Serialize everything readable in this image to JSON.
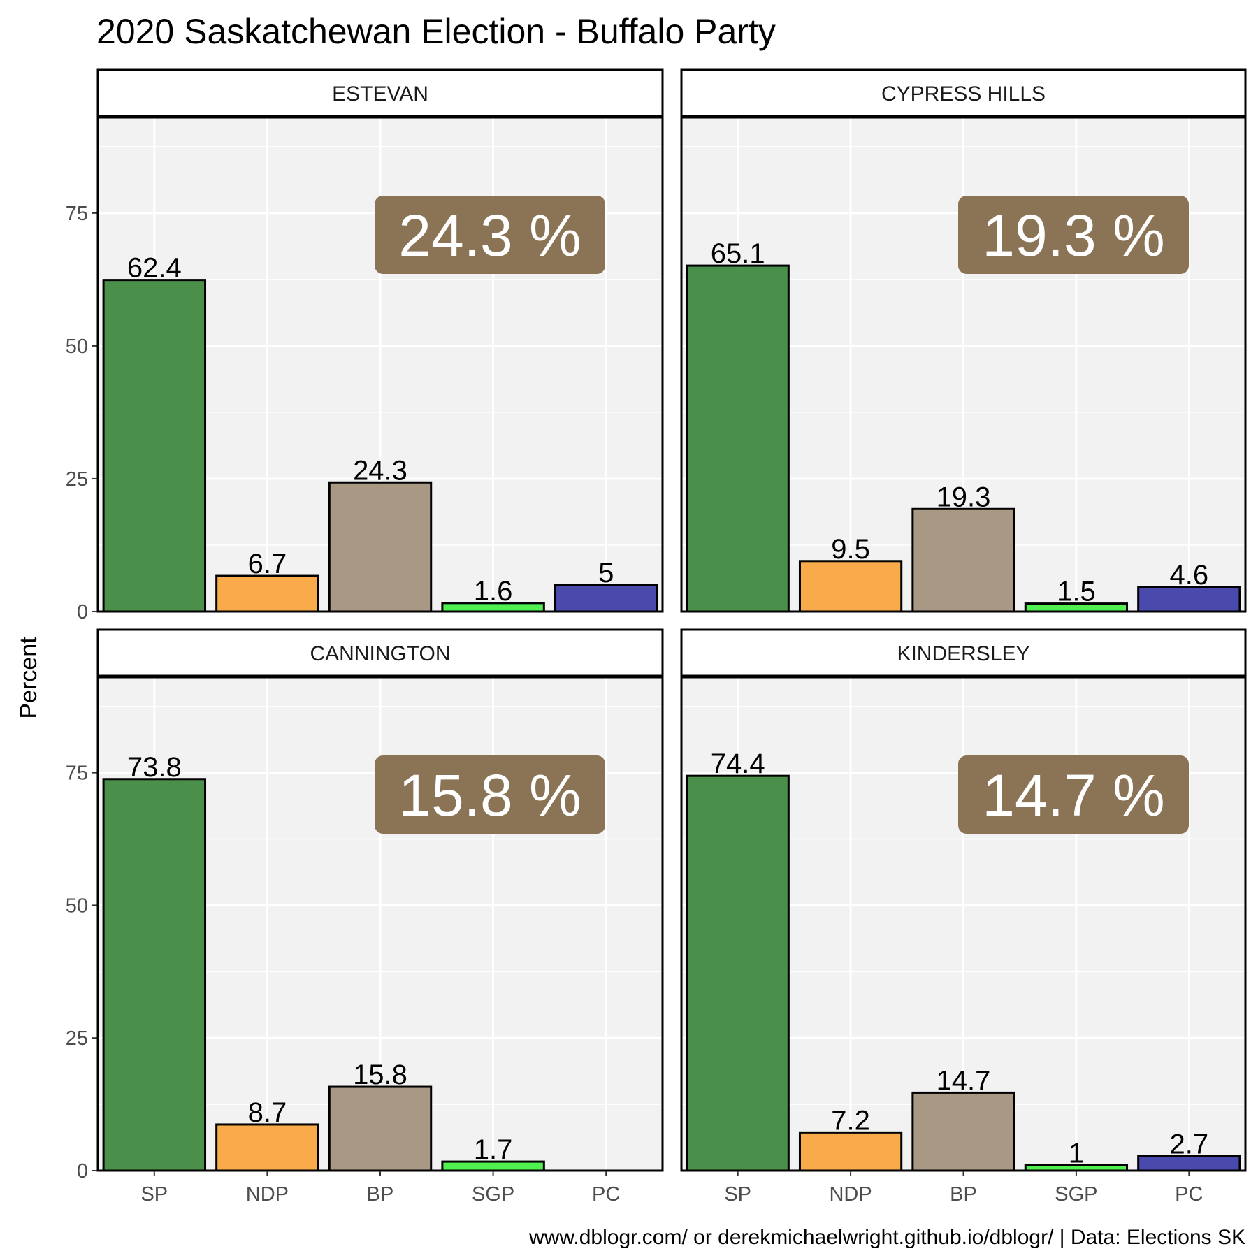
{
  "chart_data": {
    "type": "bar",
    "title": "2020 Saskatchewan Election - Buffalo Party",
    "ylabel": "Percent",
    "caption": "www.dblogr.com/ or derekmichaelwright.github.io/dblogr/ | Data: Elections SK",
    "categories": [
      "SP",
      "NDP",
      "BP",
      "SGP",
      "PC"
    ],
    "colors": {
      "SP": "#4a8f4a",
      "NDP": "#f9ab4b",
      "BP": "#a99884",
      "SGP": "#4ff04f",
      "PC": "#4a4aad"
    },
    "label_box_color": "#8b7455",
    "ylim": [
      0,
      93
    ],
    "yticks": [
      0,
      25,
      50,
      75
    ],
    "facets": [
      {
        "name": "ESTEVAN",
        "values": [
          62.4,
          6.7,
          24.3,
          1.6,
          5
        ],
        "value_labels": [
          "62.4",
          "6.7",
          "24.3",
          "1.6",
          "5"
        ],
        "highlight": "24.3 %"
      },
      {
        "name": "CYPRESS HILLS",
        "values": [
          65.1,
          9.5,
          19.3,
          1.5,
          4.6
        ],
        "value_labels": [
          "65.1",
          "9.5",
          "19.3",
          "1.5",
          "4.6"
        ],
        "highlight": "19.3 %"
      },
      {
        "name": "CANNINGTON",
        "values": [
          73.8,
          8.7,
          15.8,
          1.7,
          null
        ],
        "value_labels": [
          "73.8",
          "8.7",
          "15.8",
          "1.7",
          null
        ],
        "highlight": "15.8 %"
      },
      {
        "name": "KINDERSLEY",
        "values": [
          74.4,
          7.2,
          14.7,
          1,
          2.7
        ],
        "value_labels": [
          "74.4",
          "7.2",
          "14.7",
          "1",
          "2.7"
        ],
        "highlight": "14.7 %"
      }
    ]
  }
}
